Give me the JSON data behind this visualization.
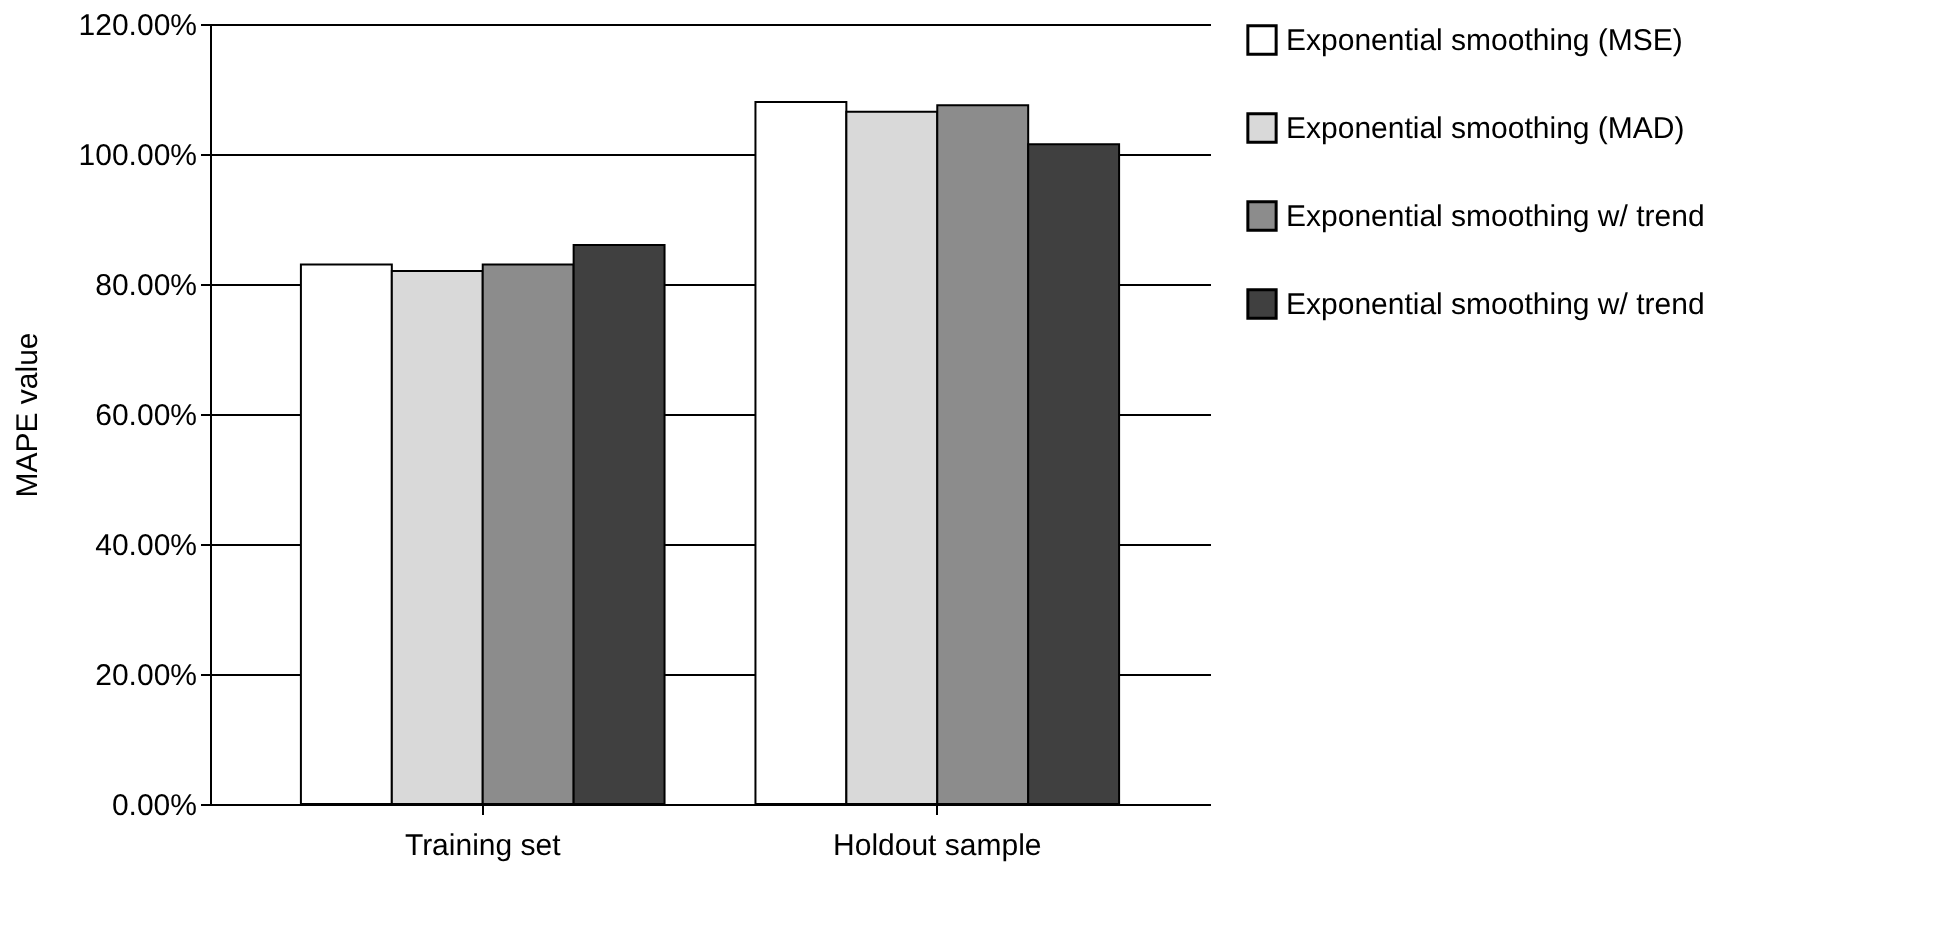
{
  "chart_data": {
    "type": "bar",
    "ylabel": "MAPE value",
    "categories": [
      "Training set",
      "Holdout sample"
    ],
    "series": [
      {
        "name": "Exponential smoothing (MSE)",
        "color": "#ffffff",
        "values": [
          83,
          108
        ]
      },
      {
        "name": "Exponential smoothing (MAD)",
        "color": "#d9d9d9",
        "values": [
          82,
          106.5
        ]
      },
      {
        "name": "Exponential smoothing w/ trend",
        "color": "#8c8c8c",
        "values": [
          83,
          107.5
        ]
      },
      {
        "name": "Exponential smoothing w/ trend",
        "color": "#404040",
        "values": [
          86,
          101.5
        ]
      }
    ],
    "ylim": [
      0,
      120
    ],
    "yticks": [
      {
        "value": 0,
        "label": "0.00%"
      },
      {
        "value": 20,
        "label": "20.00%"
      },
      {
        "value": 40,
        "label": "40.00%"
      },
      {
        "value": 60,
        "label": "60.00%"
      },
      {
        "value": 80,
        "label": "80.00%"
      },
      {
        "value": 100,
        "label": "100.00%"
      },
      {
        "value": 120,
        "label": "120.00%"
      }
    ],
    "grid": "y",
    "legend": "right"
  }
}
